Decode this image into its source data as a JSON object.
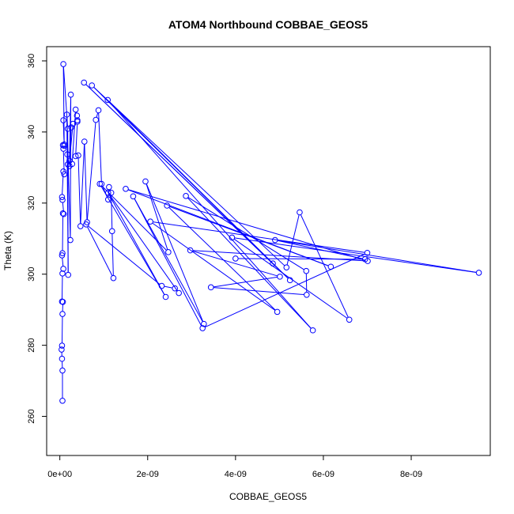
{
  "chart_data": {
    "type": "line",
    "title": "ATOM4 Northbound COBBAE_GEOS5",
    "xlabel": "COBBAE_GEOS5",
    "ylabel": "Theta (K)",
    "xlim": [
      -3e-10,
      9.8e-09
    ],
    "ylim": [
      249,
      364
    ],
    "xticks": [
      {
        "value": 0,
        "label": "0e+00"
      },
      {
        "value": 2e-09,
        "label": "2e-09"
      },
      {
        "value": 4e-09,
        "label": "4e-09"
      },
      {
        "value": 6e-09,
        "label": "6e-09"
      },
      {
        "value": 8e-09,
        "label": "8e-09"
      }
    ],
    "yticks": [
      {
        "value": 260,
        "label": "260"
      },
      {
        "value": 280,
        "label": "280"
      },
      {
        "value": 300,
        "label": "300"
      },
      {
        "value": 320,
        "label": "320"
      },
      {
        "value": 340,
        "label": "340"
      },
      {
        "value": 360,
        "label": "360"
      }
    ],
    "grid": false,
    "color": "#0000ff",
    "markers": "open-circle",
    "series": [
      {
        "points": [
          [
            6e-11,
            264.4
          ],
          [
            6e-11,
            272.9
          ],
          [
            5e-11,
            276.2
          ],
          [
            4e-11,
            278.8
          ],
          [
            5e-11,
            279.9
          ],
          [
            6e-11,
            288.8
          ],
          [
            7e-11,
            292.2
          ],
          [
            5e-11,
            292.3
          ],
          [
            6e-11,
            300.2
          ],
          [
            8e-11,
            301.5
          ],
          [
            5e-11,
            305.3
          ],
          [
            6e-11,
            305.9
          ],
          [
            7e-11,
            317.1
          ],
          [
            9e-11,
            316.9
          ],
          [
            6e-11,
            320.9
          ],
          [
            5e-11,
            321.7
          ],
          [
            8e-11,
            328.9
          ],
          [
            1e-10,
            328.1
          ],
          [
            8e-11,
            335.3
          ],
          [
            7e-11,
            336.3
          ],
          [
            1e-10,
            336.5
          ],
          [
            8e-11,
            343.3
          ],
          [
            1e-10,
            336.1
          ],
          [
            8e-11,
            359.1
          ],
          [
            1.8e-10,
            340.9
          ],
          [
            1.9e-10,
            299.8
          ],
          [
            1.6e-10,
            344.9
          ],
          [
            2.4e-10,
            309.6
          ],
          [
            2.5e-10,
            350.5
          ],
          [
            2.2e-10,
            331.9
          ],
          [
            3e-10,
            342.3
          ],
          [
            2.6e-10,
            341.3
          ],
          [
            2.2e-10,
            330.4
          ],
          [
            1.7e-10,
            333.7
          ],
          [
            1.8e-10,
            330.9
          ],
          [
            2.8e-10,
            331.0
          ],
          [
            3.6e-10,
            346.3
          ],
          [
            3.9e-10,
            344.6
          ],
          [
            4e-10,
            343.3
          ],
          [
            4e-10,
            342.9
          ],
          [
            3.6e-10,
            333.2
          ],
          [
            4.2e-10,
            333.4
          ],
          [
            4.7e-10,
            313.5
          ],
          [
            5.6e-10,
            337.3
          ],
          [
            6.2e-10,
            314.6
          ],
          [
            8.2e-10,
            343.4
          ],
          [
            8.8e-10,
            346.1
          ],
          [
            9.5e-10,
            325.4
          ],
          [
            1.1e-09,
            321.0
          ],
          [
            1.12e-09,
            324.5
          ],
          [
            1.17e-09,
            322.9
          ],
          [
            1.19e-09,
            312.1
          ],
          [
            1.22e-09,
            298.9
          ],
          [
            6e-10,
            314.0
          ],
          [
            2.32e-09,
            296.7
          ],
          [
            2.62e-09,
            296.0
          ],
          [
            2.71e-09,
            294.7
          ],
          [
            1.1e-09,
            322.9
          ],
          [
            2.41e-09,
            293.6
          ],
          [
            9.1e-10,
            325.4
          ],
          [
            2.47e-09,
            306.2
          ],
          [
            1.95e-09,
            326.1
          ],
          [
            3.28e-09,
            286.0
          ],
          [
            1.67e-09,
            321.9
          ],
          [
            3.25e-09,
            284.8
          ],
          [
            7e-09,
            306.0
          ],
          [
            2.06e-09,
            314.8
          ],
          [
            4.95e-09,
            289.4
          ],
          [
            2.44e-09,
            319.3
          ],
          [
            6.17e-09,
            302.1
          ],
          [
            1.5e-09,
            324.0
          ],
          [
            7.01e-09,
            303.7
          ],
          [
            2.97e-09,
            306.7
          ],
          [
            5.01e-09,
            299.3
          ],
          [
            3.44e-09,
            296.3
          ],
          [
            5.62e-09,
            294.2
          ],
          [
            5.61e-09,
            300.9
          ],
          [
            2.87e-09,
            322.0
          ],
          [
            5.76e-09,
            284.2
          ],
          [
            1.09e-09,
            349.0
          ],
          [
            5.24e-09,
            298.3
          ],
          [
            5.5e-10,
            353.9
          ],
          [
            4.85e-09,
            303.0
          ],
          [
            7.3e-10,
            353.1
          ],
          [
            5.16e-09,
            301.9
          ],
          [
            5.46e-09,
            317.4
          ],
          [
            6.59e-09,
            287.2
          ],
          [
            3.92e-09,
            310.3
          ],
          [
            9.54e-09,
            300.4
          ],
          [
            4.9e-09,
            309.6
          ],
          [
            6.95e-09,
            304.2
          ],
          [
            4e-09,
            304.4
          ]
        ]
      }
    ]
  }
}
